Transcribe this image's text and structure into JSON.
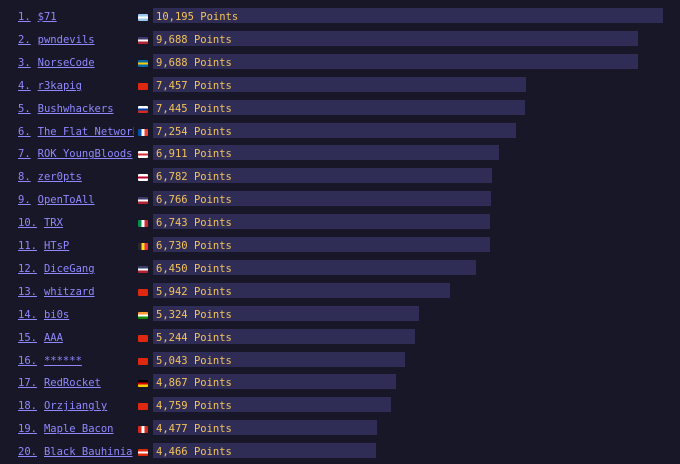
{
  "points_suffix": "Points",
  "max_points": 10195,
  "teams": [
    {
      "rank": "1.",
      "name": "$71",
      "flag": "argentina",
      "flag_colors": [
        "#9cc8f0",
        "#ffffff",
        "#9cc8f0"
      ],
      "points": 10195,
      "points_text": "10,195"
    },
    {
      "rank": "2.",
      "name": "pwndevils",
      "flag": "usa",
      "flag_colors": [
        "#3c3b6e",
        "#ffffff",
        "#b22234"
      ],
      "points": 9688,
      "points_text": "9,688"
    },
    {
      "rank": "3.",
      "name": "NorseCode",
      "flag": "sweden",
      "flag_colors": [
        "#006aa7",
        "#fecc00",
        "#006aa7"
      ],
      "points": 9688,
      "points_text": "9,688"
    },
    {
      "rank": "4.",
      "name": "r3kapig",
      "flag": "china",
      "flag_colors": [
        "#de2910",
        "#de2910",
        "#de2910"
      ],
      "points": 7457,
      "points_text": "7,457"
    },
    {
      "rank": "5.",
      "name": "Bushwhackers",
      "flag": "russia",
      "flag_colors": [
        "#ffffff",
        "#0039a6",
        "#d52b1e"
      ],
      "points": 7445,
      "points_text": "7,445"
    },
    {
      "rank": "6.",
      "name": "The Flat Network",
      "flag": "france",
      "flag_colors": [
        "#0055a4",
        "#ffffff",
        "#ef4135"
      ],
      "points": 7254,
      "points_text": "7,254"
    },
    {
      "rank": "7.",
      "name": "ROK YoungBloods",
      "flag": "south-korea",
      "flag_colors": [
        "#ffffff",
        "#cd2e3a",
        "#ffffff"
      ],
      "points": 6911,
      "points_text": "6,911"
    },
    {
      "rank": "8.",
      "name": "zer0pts",
      "flag": "japan",
      "flag_colors": [
        "#ffffff",
        "#bc002d",
        "#ffffff"
      ],
      "points": 6782,
      "points_text": "6,782"
    },
    {
      "rank": "9.",
      "name": "OpenToAll",
      "flag": "usa",
      "flag_colors": [
        "#3c3b6e",
        "#ffffff",
        "#b22234"
      ],
      "points": 6766,
      "points_text": "6,766"
    },
    {
      "rank": "10.",
      "name": "TRX",
      "flag": "italy",
      "flag_colors": [
        "#009246",
        "#ffffff",
        "#ce2b37"
      ],
      "points": 6743,
      "points_text": "6,743"
    },
    {
      "rank": "11.",
      "name": "HTsP",
      "flag": "belgium",
      "flag_colors": [
        "#2d2926",
        "#fdda24",
        "#ef3340"
      ],
      "points": 6730,
      "points_text": "6,730"
    },
    {
      "rank": "12.",
      "name": "DiceGang",
      "flag": "usa",
      "flag_colors": [
        "#3c3b6e",
        "#ffffff",
        "#b22234"
      ],
      "points": 6450,
      "points_text": "6,450"
    },
    {
      "rank": "13.",
      "name": "whitzard",
      "flag": "china",
      "flag_colors": [
        "#de2910",
        "#de2910",
        "#de2910"
      ],
      "points": 5942,
      "points_text": "5,942"
    },
    {
      "rank": "14.",
      "name": "bi0s",
      "flag": "india",
      "flag_colors": [
        "#ff9933",
        "#ffffff",
        "#138808"
      ],
      "points": 5324,
      "points_text": "5,324"
    },
    {
      "rank": "15.",
      "name": "AAA",
      "flag": "china",
      "flag_colors": [
        "#de2910",
        "#de2910",
        "#de2910"
      ],
      "points": 5244,
      "points_text": "5,244"
    },
    {
      "rank": "16.",
      "name": "******",
      "flag": "china",
      "flag_colors": [
        "#de2910",
        "#de2910",
        "#de2910"
      ],
      "points": 5043,
      "points_text": "5,043"
    },
    {
      "rank": "17.",
      "name": "RedRocket",
      "flag": "germany",
      "flag_colors": [
        "#000000",
        "#dd0000",
        "#ffce00"
      ],
      "points": 4867,
      "points_text": "4,867"
    },
    {
      "rank": "18.",
      "name": "Orzjiangly",
      "flag": "china",
      "flag_colors": [
        "#de2910",
        "#de2910",
        "#de2910"
      ],
      "points": 4759,
      "points_text": "4,759"
    },
    {
      "rank": "19.",
      "name": "Maple Bacon",
      "flag": "canada",
      "flag_colors": [
        "#d52b1e",
        "#ffffff",
        "#d52b1e"
      ],
      "points": 4477,
      "points_text": "4,477"
    },
    {
      "rank": "20.",
      "name": "Black Bauhinia",
      "flag": "hong-kong",
      "flag_colors": [
        "#de2910",
        "#ffffff",
        "#de2910"
      ],
      "points": 4466,
      "points_text": "4,466"
    }
  ]
}
